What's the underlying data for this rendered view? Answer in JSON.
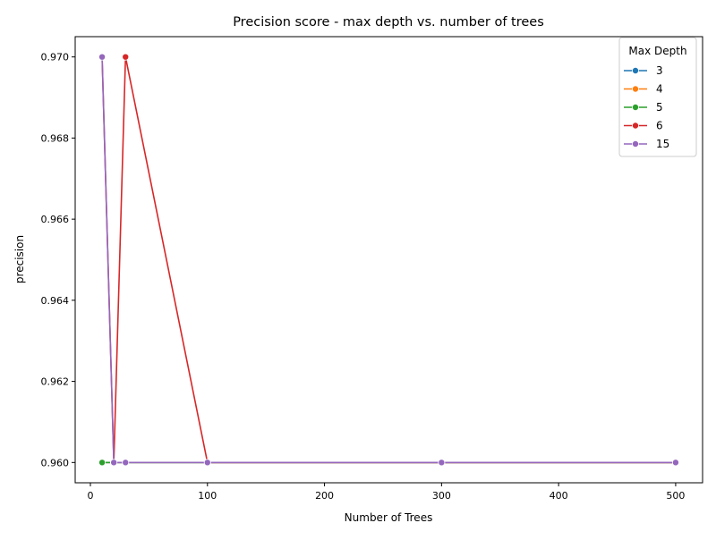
{
  "chart_data": {
    "type": "line",
    "title": "Precision score - max depth vs. number of trees",
    "xlabel": "Number of Trees",
    "ylabel": "precision",
    "xlim": [
      -13,
      523
    ],
    "ylim": [
      0.9595,
      0.9705
    ],
    "xticks": [
      0,
      100,
      200,
      300,
      400,
      500
    ],
    "yticks": [
      0.96,
      0.962,
      0.964,
      0.966,
      0.968,
      0.97
    ],
    "grid": false,
    "legend": {
      "title": "Max Depth",
      "placement": "top-right"
    },
    "series": [
      {
        "name": "3",
        "color": "#1f77b4",
        "x": [
          10,
          20,
          30,
          100,
          300,
          500
        ],
        "y": [
          0.96,
          0.96,
          0.96,
          0.96,
          0.96,
          0.96
        ]
      },
      {
        "name": "4",
        "color": "#ff7f0e",
        "x": [
          10,
          20,
          30,
          100,
          300,
          500
        ],
        "y": [
          0.96,
          0.96,
          0.96,
          0.96,
          0.96,
          0.96
        ]
      },
      {
        "name": "5",
        "color": "#2ca02c",
        "x": [
          10,
          20,
          30,
          100,
          300,
          500
        ],
        "y": [
          0.96,
          0.96,
          0.96,
          0.96,
          0.96,
          0.96
        ]
      },
      {
        "name": "6",
        "color": "#d62728",
        "x": [
          10,
          20,
          30,
          100,
          300,
          500
        ],
        "y": [
          0.97,
          0.96,
          0.97,
          0.96,
          0.96,
          0.96
        ]
      },
      {
        "name": "15",
        "color": "#9467bd",
        "x": [
          10,
          20,
          30,
          100,
          300,
          500
        ],
        "y": [
          0.97,
          0.96,
          0.96,
          0.96,
          0.96,
          0.96
        ]
      }
    ]
  }
}
